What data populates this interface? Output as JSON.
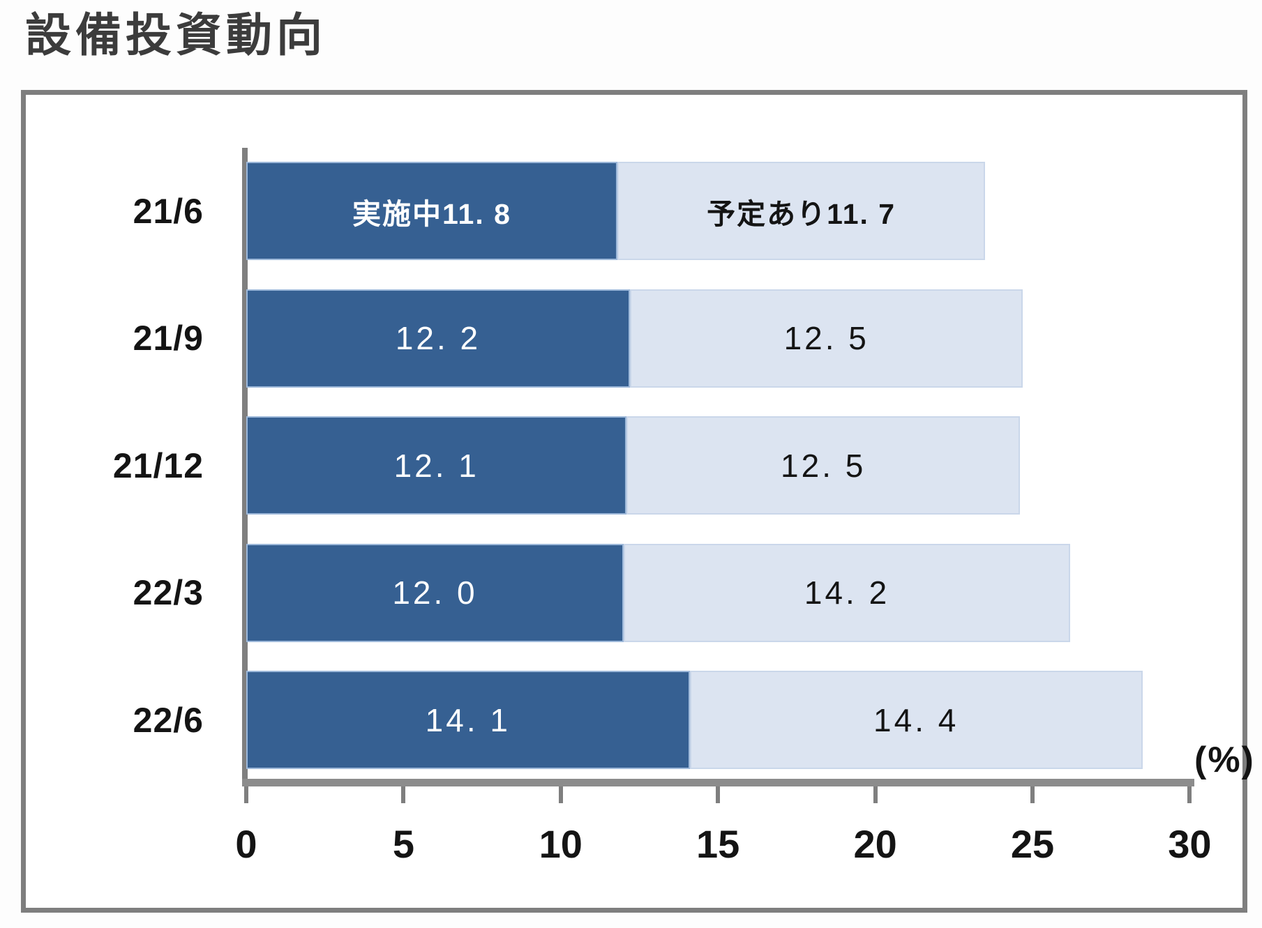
{
  "page": {
    "title": "設備投資動向"
  },
  "chart_data": {
    "type": "bar",
    "orientation": "horizontal",
    "stacked": true,
    "title": "設備投資動向",
    "categories": [
      "21/6",
      "21/9",
      "21/12",
      "22/3",
      "22/6"
    ],
    "series": [
      {
        "key": "in-progress",
        "name": "実施中",
        "color": "#366092",
        "label_color": "#ffffff",
        "values": [
          11.8,
          12.2,
          12.1,
          12.0,
          14.1
        ],
        "labels": [
          "実施中11. 8",
          "12. 2",
          "12. 1",
          "12. 0",
          "14. 1"
        ]
      },
      {
        "key": "planned",
        "name": "予定あり",
        "color": "#dce4f1",
        "label_color": "#141414",
        "values": [
          11.7,
          12.5,
          12.5,
          14.2,
          14.4
        ],
        "labels": [
          "予定あり11. 7",
          "12. 5",
          "12. 5",
          "14. 2",
          "14. 4"
        ]
      }
    ],
    "xlabel": "(%)",
    "x_ticks": [
      0,
      5,
      10,
      15,
      20,
      25,
      30
    ],
    "xlim": [
      0,
      30
    ],
    "grid": false,
    "legend_position": "labels-inside-first-bar"
  }
}
